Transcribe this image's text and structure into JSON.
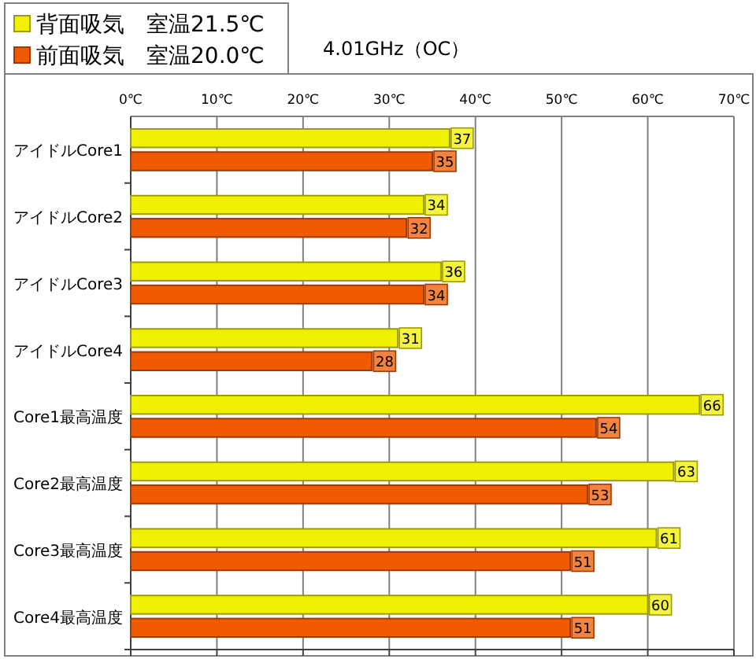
{
  "chart_data": {
    "type": "bar",
    "orientation": "horizontal",
    "title": "4.01GHz（OC）",
    "categories": [
      "アイドルCore1",
      "アイドルCore2",
      "アイドルCore3",
      "アイドルCore4",
      "Core1最高温度",
      "Core2最高温度",
      "Core3最高温度",
      "Core4最高温度"
    ],
    "series": [
      {
        "name": "背面吸気　室温21.5℃",
        "color": "#f0f000",
        "values": [
          37,
          34,
          36,
          31,
          66,
          63,
          61,
          60
        ]
      },
      {
        "name": "前面吸気　室温20.0℃",
        "color": "#f05a00",
        "values": [
          35,
          32,
          34,
          28,
          54,
          53,
          51,
          51
        ]
      }
    ],
    "xlim": [
      0,
      70
    ],
    "xticks": [
      {
        "value": 0,
        "label": "0℃"
      },
      {
        "value": 10,
        "label": "10℃"
      },
      {
        "value": 20,
        "label": "20℃"
      },
      {
        "value": 30,
        "label": "30℃"
      },
      {
        "value": 40,
        "label": "40℃"
      },
      {
        "value": 50,
        "label": "50℃"
      },
      {
        "value": 60,
        "label": "60℃"
      },
      {
        "value": 70,
        "label": "70℃"
      }
    ],
    "grid": "x",
    "legend": "top left",
    "data_labels": true
  }
}
